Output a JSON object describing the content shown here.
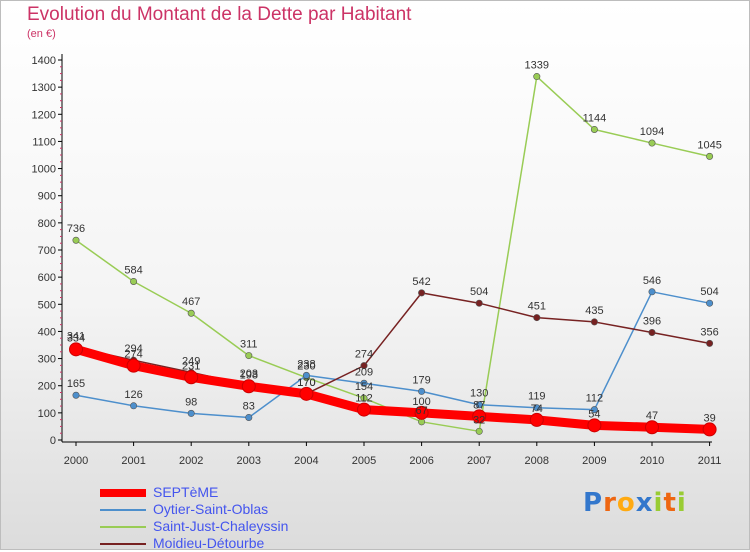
{
  "chart_data": {
    "type": "line",
    "title": "Evolution du Montant de la Dette par Habitant",
    "unit_label": "(en €)",
    "xlabel": "",
    "ylabel": "",
    "ylim": [
      0,
      1400
    ],
    "yticks": [
      "0",
      "100",
      "200",
      "300",
      "400",
      "500",
      "600",
      "700",
      "800",
      "900",
      "1000",
      "1100",
      "1200",
      "1300",
      "1400"
    ],
    "categories": [
      "2000",
      "2001",
      "2002",
      "2003",
      "2004",
      "2005",
      "2006",
      "2007",
      "2008",
      "2009",
      "2010",
      "2011"
    ],
    "grid": false,
    "legend_position": "bottom-left",
    "series": [
      {
        "name": "SEPTèME",
        "color": "#ff0000",
        "values": [
          334,
          274,
          231,
          198,
          170,
          112,
          100,
          87,
          74,
          54,
          47,
          39
        ],
        "labels": [
          "334",
          "274",
          "231",
          "198",
          "170",
          "112",
          "100",
          "87",
          "74",
          "54",
          "47",
          "39"
        ]
      },
      {
        "name": "Oytier-Saint-Oblas",
        "color": "#4d8fcc",
        "values": [
          165,
          126,
          98,
          83,
          238,
          209,
          179,
          130,
          119,
          112,
          546,
          504
        ],
        "labels": [
          "165",
          "126",
          "98",
          "83",
          "238",
          "209",
          "179",
          "130",
          "119",
          "112",
          "546",
          "504"
        ]
      },
      {
        "name": "Saint-Just-Chaleyssin",
        "color": "#99cc55",
        "values": [
          736,
          584,
          467,
          311,
          230,
          154,
          67,
          32,
          1339,
          1144,
          1094,
          1045
        ],
        "labels": [
          "736",
          "584",
          "467",
          "311",
          "230",
          "154",
          "67",
          "32",
          "1339",
          "1144",
          "1094",
          "1045"
        ]
      },
      {
        "name": "Moidieu-Détourbe",
        "color": "#772222",
        "values": [
          341,
          294,
          249,
          203,
          170,
          274,
          542,
          504,
          451,
          435,
          396,
          356
        ],
        "labels": [
          "341",
          "294",
          "249",
          "203",
          "170",
          "274",
          "542",
          "504",
          "451",
          "435",
          "396",
          "356"
        ]
      }
    ]
  },
  "logo": {
    "letters": [
      "P",
      "r",
      "o",
      "x",
      "i",
      "t",
      "i"
    ],
    "colors": [
      "#3377cc",
      "#ee6611",
      "#ffaa11",
      "#3377cc",
      "#99cc33",
      "#ee6611",
      "#99cc33"
    ]
  }
}
